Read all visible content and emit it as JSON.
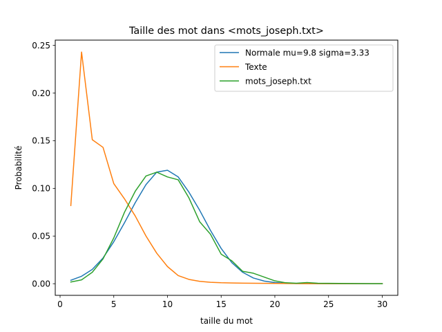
{
  "chart_data": {
    "type": "line",
    "title": "Taille des mot dans <mots_joseph.txt>",
    "xlabel": "taille du mot",
    "ylabel": "Probabilité",
    "xlim": [
      -0.45,
      31.45
    ],
    "ylim": [
      -0.0122,
      0.2555
    ],
    "xticks": [
      0,
      5,
      10,
      15,
      20,
      25,
      30
    ],
    "yticks": [
      0.0,
      0.05,
      0.1,
      0.15,
      0.2,
      0.25
    ],
    "xtick_labels": [
      "0",
      "5",
      "10",
      "15",
      "20",
      "25",
      "30"
    ],
    "ytick_labels": [
      "0.00",
      "0.05",
      "0.10",
      "0.15",
      "0.20",
      "0.25"
    ],
    "grid": false,
    "legend_position": "top-right",
    "x": [
      1,
      2,
      3,
      4,
      5,
      6,
      7,
      8,
      9,
      10,
      11,
      12,
      13,
      14,
      15,
      16,
      17,
      18,
      19,
      20,
      21,
      22,
      23,
      24,
      25,
      26,
      27,
      28,
      29,
      30
    ],
    "series": [
      {
        "name": "Normale mu=9.8 sigma=3.33",
        "color": "#1f77b4",
        "values": [
          0.0036,
          0.0078,
          0.015,
          0.027,
          0.044,
          0.064,
          0.085,
          0.104,
          0.117,
          0.119,
          0.112,
          0.096,
          0.077,
          0.056,
          0.037,
          0.022,
          0.012,
          0.006,
          0.0028,
          0.0012,
          0.0005,
          0.0002,
          0.0001,
          0,
          0,
          0,
          0,
          0,
          0,
          0
        ]
      },
      {
        "name": "Texte",
        "color": "#ff7f0e",
        "values": [
          0.082,
          0.243,
          0.151,
          0.143,
          0.105,
          0.089,
          0.071,
          0.05,
          0.032,
          0.018,
          0.0085,
          0.0045,
          0.0025,
          0.0015,
          0.001,
          0.0008,
          0.0006,
          0.0005,
          0.0004,
          0.0003,
          0.0002,
          0.0001,
          0,
          0,
          0,
          0,
          0,
          0,
          0,
          0
        ]
      },
      {
        "name": "mots_joseph.txt",
        "color": "#2ca02c",
        "values": [
          0.0018,
          0.004,
          0.012,
          0.026,
          0.048,
          0.075,
          0.097,
          0.113,
          0.117,
          0.112,
          0.109,
          0.09,
          0.065,
          0.052,
          0.031,
          0.024,
          0.013,
          0.011,
          0.007,
          0.003,
          0.001,
          0.0005,
          0.0012,
          0.0005,
          0.0004,
          0.0003,
          0.0002,
          0.0001,
          0,
          0
        ]
      }
    ]
  }
}
